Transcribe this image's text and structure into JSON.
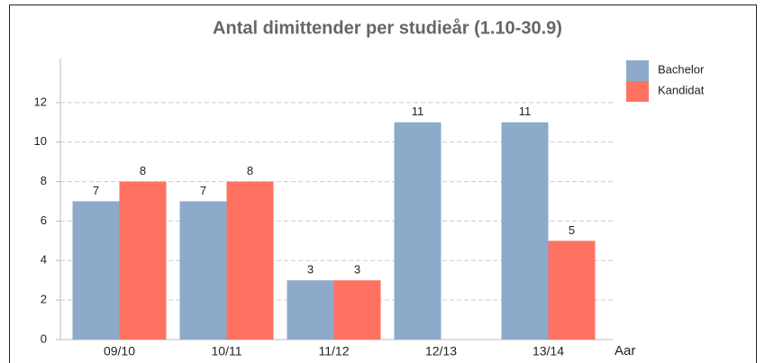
{
  "chart_data": {
    "type": "bar",
    "title": "Antal dimittender per studieår (1.10-30.9)",
    "x_label": "Aar",
    "categories": [
      "09/10",
      "10/11",
      "11/12",
      "12/13",
      "13/14"
    ],
    "series": [
      {
        "name": "Bachelor",
        "color": "#8eaacb",
        "values": [
          7,
          7,
          3,
          11,
          11
        ]
      },
      {
        "name": "Kandidat",
        "color": "#ff7262",
        "values": [
          8,
          8,
          3,
          null,
          5
        ]
      }
    ],
    "ylim": [
      0,
      14
    ],
    "yticks": [
      0,
      2,
      4,
      6,
      8,
      10,
      12
    ],
    "grid": true,
    "legend": "right"
  }
}
